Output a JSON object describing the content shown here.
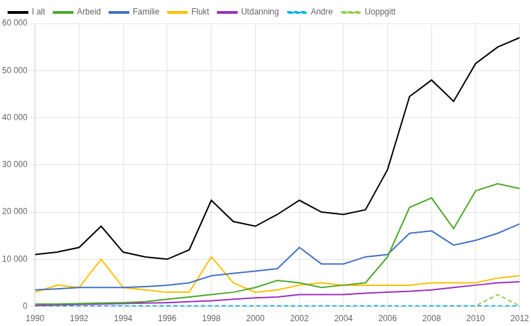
{
  "chart_data": {
    "type": "line",
    "x": [
      1990,
      1991,
      1992,
      1993,
      1994,
      1995,
      1996,
      1997,
      1998,
      1999,
      2000,
      2001,
      2002,
      2003,
      2004,
      2005,
      2006,
      2007,
      2008,
      2009,
      2010,
      2011,
      2012
    ],
    "series": [
      {
        "name": "I alt",
        "color": "#000000",
        "line_style": "solid",
        "values": [
          11000,
          11500,
          12500,
          17000,
          11500,
          10500,
          10000,
          12000,
          22500,
          18000,
          17000,
          19500,
          22500,
          20000,
          19500,
          20500,
          29000,
          44500,
          48000,
          43500,
          51500,
          55000,
          57000
        ]
      },
      {
        "name": "Arbeid",
        "color": "#4EA72A",
        "line_style": "solid",
        "values": [
          500,
          500,
          600,
          700,
          800,
          1000,
          1500,
          2000,
          2500,
          3000,
          4000,
          5500,
          5000,
          4000,
          4500,
          5000,
          10500,
          21000,
          23000,
          16500,
          24500,
          26000,
          25000
        ]
      },
      {
        "name": "Familie",
        "color": "#4472C4",
        "line_style": "solid",
        "values": [
          3500,
          3700,
          4000,
          4000,
          4000,
          4200,
          4500,
          5000,
          6500,
          7000,
          7500,
          8000,
          12500,
          9000,
          9000,
          10500,
          11000,
          15500,
          16000,
          13000,
          14000,
          15500,
          17500
        ]
      },
      {
        "name": "Flukt",
        "color": "#FFC000",
        "line_style": "solid",
        "values": [
          3000,
          4500,
          4000,
          10000,
          4000,
          3500,
          3000,
          3000,
          10500,
          5000,
          3000,
          3500,
          4500,
          5000,
          4500,
          4500,
          4500,
          4500,
          5000,
          5000,
          5000,
          6000,
          6500
        ]
      },
      {
        "name": "Utdanning",
        "color": "#9B30C0",
        "line_style": "solid",
        "values": [
          200,
          300,
          400,
          500,
          600,
          700,
          800,
          1000,
          1200,
          1500,
          1800,
          2000,
          2500,
          2500,
          2500,
          2800,
          3000,
          3200,
          3500,
          4000,
          4500,
          5000,
          5200
        ]
      },
      {
        "name": "Andre",
        "color": "#00B0F0",
        "line_style": "dashed",
        "values": [
          100,
          100,
          100,
          100,
          100,
          100,
          100,
          100,
          100,
          100,
          100,
          100,
          100,
          100,
          100,
          100,
          100,
          100,
          100,
          100,
          100,
          100,
          100
        ]
      },
      {
        "name": "Uoppgitt",
        "color": "#92D050",
        "line_style": "dashed",
        "values": [
          100,
          100,
          100,
          100,
          100,
          100,
          100,
          100,
          100,
          100,
          100,
          100,
          100,
          100,
          100,
          100,
          100,
          100,
          100,
          100,
          100,
          2500,
          100
        ]
      }
    ],
    "xlim": [
      1990,
      2012
    ],
    "xticks": [
      1990,
      1992,
      1994,
      1996,
      1998,
      2000,
      2002,
      2004,
      2006,
      2008,
      2010,
      2012
    ],
    "ylim": [
      0,
      60000
    ],
    "yticks": [
      0,
      {
        "value": 10000,
        "label": "10 000"
      },
      {
        "value": 20000,
        "label": "20 000"
      },
      {
        "value": 30000,
        "label": "30 000"
      },
      {
        "value": 40000,
        "label": "40 000"
      },
      {
        "value": 50000,
        "label": "50 000"
      },
      {
        "value": 60000,
        "label": "60 000"
      }
    ],
    "grid": true,
    "legend": "upper left"
  }
}
